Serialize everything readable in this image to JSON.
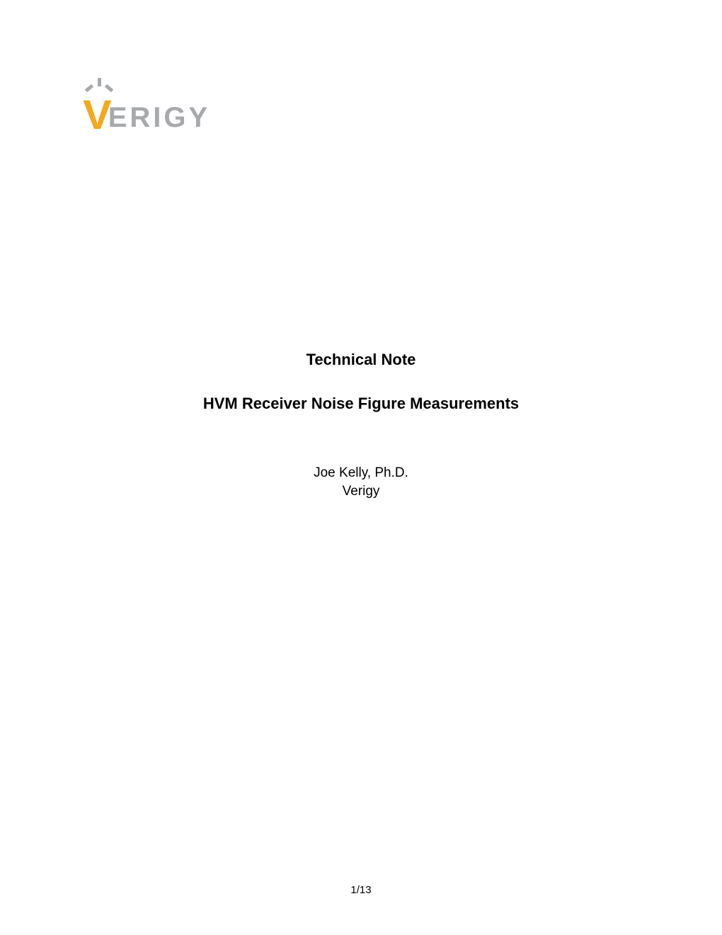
{
  "logo": {
    "first_letter": "V",
    "rest": "ERIGY",
    "accent_color": "#f4a81d",
    "text_color": "#a7a9ac",
    "mark_color": "#a7a9ac"
  },
  "doc": {
    "label": "Technical Note",
    "title": "HVM Receiver Noise Figure Measurements",
    "author": "Joe Kelly, Ph.D.",
    "organization": "Verigy"
  },
  "footer": {
    "page_indicator": "1/13"
  },
  "style": {
    "background_color": "#ffffff",
    "heading_fontsize_pt": 17,
    "body_fontsize_pt": 14,
    "footer_fontsize_pt": 11,
    "font_family": "Verdana"
  }
}
